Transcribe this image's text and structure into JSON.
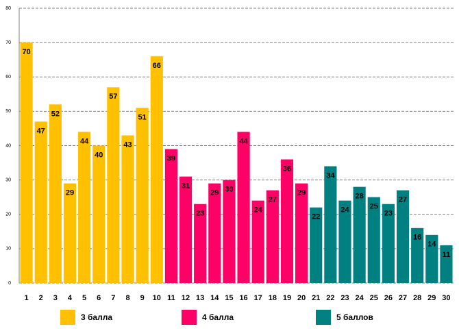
{
  "chart_data": {
    "type": "bar",
    "categories": [
      "1",
      "2",
      "3",
      "4",
      "5",
      "6",
      "7",
      "8",
      "9",
      "10",
      "11",
      "12",
      "13",
      "14",
      "15",
      "16",
      "17",
      "18",
      "19",
      "20",
      "21",
      "22",
      "23",
      "24",
      "25",
      "26",
      "27",
      "28",
      "29",
      "30"
    ],
    "series": [
      {
        "name": "3 балла",
        "color": "#FFC000",
        "values": [
          70,
          47,
          52,
          29,
          44,
          40,
          57,
          43,
          51,
          66,
          null,
          null,
          null,
          null,
          null,
          null,
          null,
          null,
          null,
          null,
          null,
          null,
          null,
          null,
          null,
          null,
          null,
          null,
          null,
          null
        ]
      },
      {
        "name": "4 балла",
        "color": "#FF0066",
        "values": [
          null,
          null,
          null,
          null,
          null,
          null,
          null,
          null,
          null,
          null,
          39,
          31,
          23,
          29,
          30,
          44,
          24,
          27,
          36,
          29,
          null,
          null,
          null,
          null,
          null,
          null,
          null,
          null,
          null,
          null
        ]
      },
      {
        "name": "5 баллов",
        "color": "#008080",
        "values": [
          null,
          null,
          null,
          null,
          null,
          null,
          null,
          null,
          null,
          null,
          null,
          null,
          null,
          null,
          null,
          null,
          null,
          null,
          null,
          null,
          22,
          34,
          24,
          28,
          25,
          23,
          27,
          16,
          14,
          11
        ]
      }
    ],
    "ylim": [
      0,
      80
    ],
    "yticks": [
      0,
      10,
      20,
      30,
      40,
      50,
      60,
      70,
      80
    ],
    "grid": true,
    "legend": "bottom"
  }
}
